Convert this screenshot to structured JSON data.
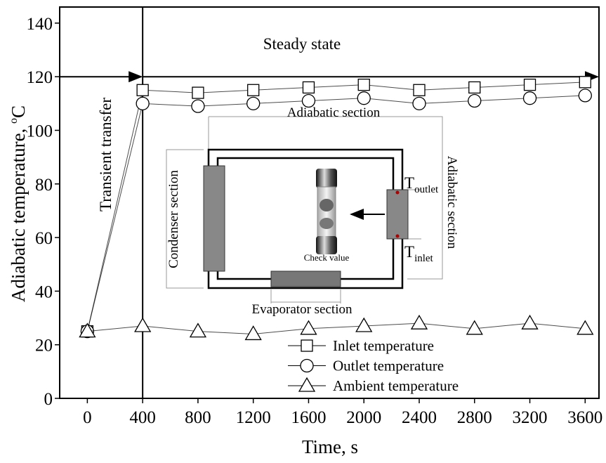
{
  "chart_data": {
    "type": "line",
    "x_label": "Time, s",
    "y_label_parts": [
      "Adiabatic temperature, ",
      "o",
      "C"
    ],
    "x": [
      0,
      400,
      800,
      1200,
      1600,
      2000,
      2400,
      2800,
      3200,
      3600
    ],
    "series": [
      {
        "name": "Inlet temperature",
        "marker": "square",
        "color": "#000000",
        "values": [
          25,
          115,
          114,
          115,
          116,
          117,
          115,
          116,
          117,
          118
        ]
      },
      {
        "name": "Outlet temperature",
        "marker": "circle",
        "color": "#000000",
        "values": [
          25,
          110,
          109,
          110,
          111,
          112,
          110,
          111,
          112,
          113
        ]
      },
      {
        "name": "Ambient temperature",
        "marker": "triangle",
        "color": "#000000",
        "values": [
          25,
          27,
          25,
          24,
          26,
          27,
          28,
          26,
          28,
          26
        ]
      }
    ],
    "xlim": [
      -200,
      3700
    ],
    "ylim": [
      0,
      146
    ],
    "xticks": [
      0,
      400,
      800,
      1200,
      1600,
      2000,
      2400,
      2800,
      3200,
      3600
    ],
    "yticks": [
      0,
      20,
      40,
      60,
      80,
      100,
      120,
      140
    ],
    "legend": "bottom",
    "annotations": {
      "steady": "Steady state",
      "transient": "Transient transfer",
      "adiabatic_top": "Adiabatic section",
      "adiabatic_right": "Adiabatic section",
      "condenser": "Condenser section",
      "evaporator": "Evaporator section",
      "valve": "Check value",
      "t_outlet": {
        "main": "T",
        "sub": "outlet"
      },
      "t_inlet": {
        "main": "T",
        "sub": "inlet"
      }
    }
  }
}
